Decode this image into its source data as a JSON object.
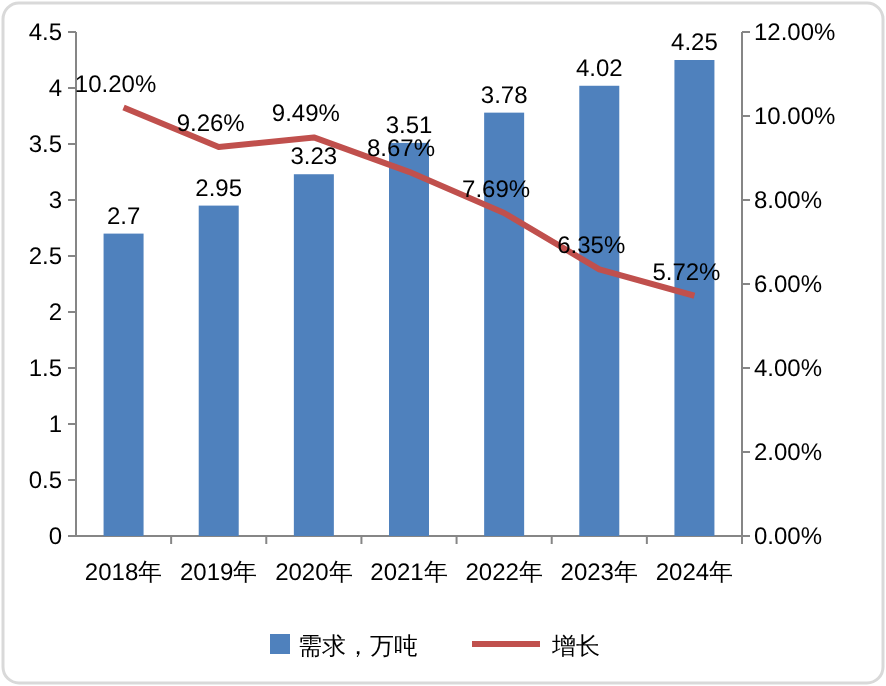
{
  "chart_data": {
    "type": "bar",
    "categories": [
      "2018年",
      "2019年",
      "2020年",
      "2021年",
      "2022年",
      "2023年",
      "2024年"
    ],
    "series": [
      {
        "name": "需求，万吨",
        "color": "#4f81bd",
        "values": [
          2.7,
          2.95,
          3.23,
          3.51,
          3.78,
          4.02,
          4.25
        ]
      },
      {
        "name": "增长",
        "type": "line",
        "axis": "y2",
        "color": "#c0504d",
        "values": [
          10.2,
          9.26,
          9.49,
          8.67,
          7.69,
          6.35,
          5.72
        ],
        "value_labels": [
          "10.20%",
          "9.26%",
          "9.49%",
          "8.67%",
          "7.69%",
          "6.35%",
          "5.72%"
        ]
      }
    ],
    "data_labels": true,
    "ylim": [
      0,
      4.5
    ],
    "yticks": [
      0,
      0.5,
      1,
      1.5,
      2,
      2.5,
      3,
      3.5,
      4,
      4.5
    ],
    "y2lim": [
      0,
      12
    ],
    "y2ticks": [
      {
        "value": 0,
        "label": "0.00%"
      },
      {
        "value": 2,
        "label": "2.00%"
      },
      {
        "value": 4,
        "label": "4.00%"
      },
      {
        "value": 6,
        "label": "6.00%"
      },
      {
        "value": 8,
        "label": "8.00%"
      },
      {
        "value": 10,
        "label": "10.00%"
      },
      {
        "value": 12,
        "label": "12.00%"
      }
    ],
    "legend": "bottom",
    "grid": false
  }
}
